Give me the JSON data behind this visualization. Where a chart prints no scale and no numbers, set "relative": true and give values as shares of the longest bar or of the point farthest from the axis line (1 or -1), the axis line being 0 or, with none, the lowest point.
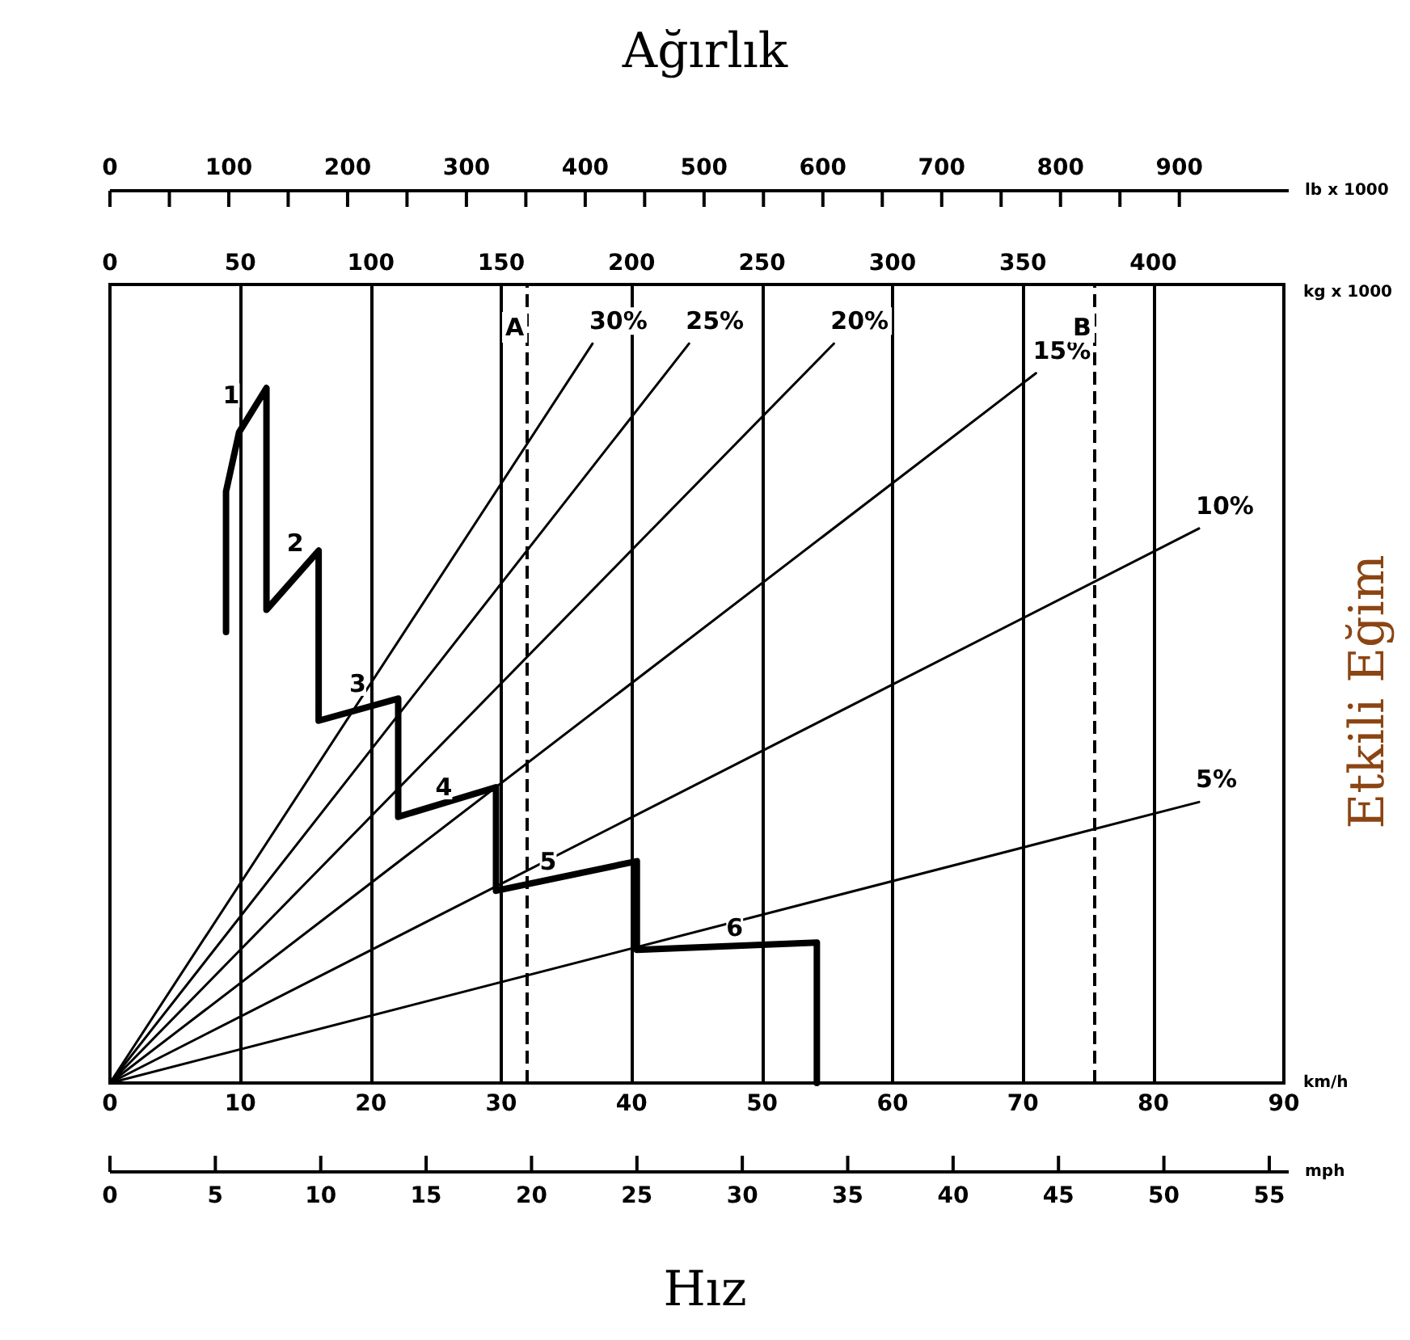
{
  "chart_data": {
    "type": "line",
    "title": "Ağırlık",
    "xlabel": "km/h",
    "x2label": "kg x 1000",
    "ylabel": "Etkili Eğim",
    "relative": true,
    "xlim": [
      0,
      90
    ],
    "xticks": [
      0,
      10,
      20,
      30,
      40,
      50,
      60,
      70,
      80,
      90
    ],
    "x2lim": [
      0,
      450
    ],
    "x2ticks": [
      0,
      50,
      100,
      150,
      200,
      250,
      300,
      350,
      400
    ],
    "series": [
      {
        "color": "#000000",
        "x": [
          8.9,
          8.9,
          9.9,
          12,
          12,
          16,
          16,
          22.1,
          22.1,
          29.6,
          29.6,
          40.4,
          40.4,
          54.2,
          54.2
        ],
        "values": [
          0.61,
          0.8,
          0.88,
          0.94,
          0.64,
          0.72,
          0.49,
          0.52,
          0.36,
          0.4,
          0.26,
          0.3,
          0.18,
          0.19,
          0
        ]
      },
      {
        "name": "30%",
        "color": "#000000",
        "x": [
          0,
          37
        ],
        "values": [
          0,
          1
        ]
      },
      {
        "name": "25%",
        "color": "#000000",
        "x": [
          0,
          44.4
        ],
        "values": [
          0,
          1
        ]
      },
      {
        "name": "20%",
        "color": "#000000",
        "x": [
          0,
          55.5
        ],
        "values": [
          0,
          1
        ]
      },
      {
        "name": "15%",
        "color": "#000000",
        "x": [
          0,
          71
        ],
        "values": [
          0,
          0.96
        ]
      },
      {
        "name": "10%",
        "color": "#000000",
        "x": [
          0,
          83.5
        ],
        "values": [
          0,
          0.75
        ]
      },
      {
        "name": "5%",
        "color": "#000000",
        "x": [
          0,
          83.5
        ],
        "values": [
          0,
          0.38
        ]
      }
    ],
    "ref_lines": [
      {
        "axis": "x",
        "value": 32,
        "label": "A",
        "line_style": "dashed",
        "color": "#000000"
      },
      {
        "axis": "x",
        "value": 75.5,
        "label": "B",
        "line_style": "dashed",
        "color": "#000000"
      }
    ],
    "annotations": [
      "Hız",
      "mph",
      "0",
      "5",
      "10",
      "15",
      "20",
      "25",
      "30",
      "35",
      "40",
      "45",
      "50",
      "55",
      "lb x 1000",
      "0",
      "100",
      "200",
      "300",
      "400",
      "500",
      "600",
      "700",
      "800",
      "900",
      {
        "text": "1",
        "x": 9.3,
        "y": 0.93
      },
      {
        "text": "2",
        "x": 14.2,
        "y": 0.73
      },
      {
        "text": "3",
        "x": 19,
        "y": 0.54
      },
      {
        "text": "4",
        "x": 25.6,
        "y": 0.4
      },
      {
        "text": "5",
        "x": 33.6,
        "y": 0.3
      },
      {
        "text": "6",
        "x": 47.9,
        "y": 0.21
      }
    ],
    "grid": true,
    "legend": false,
    "marker": "none",
    "line_style": "solid"
  }
}
